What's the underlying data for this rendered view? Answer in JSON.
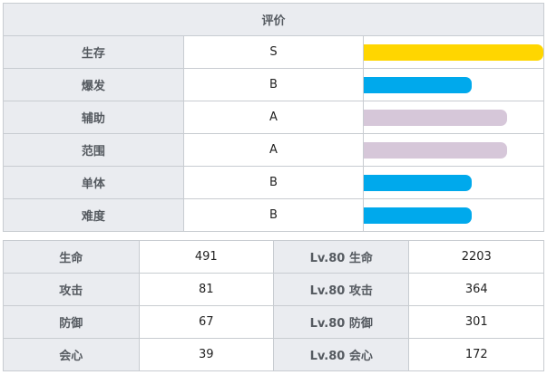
{
  "rating": {
    "title": "评价",
    "rows": [
      {
        "label": "生存",
        "grade": "S",
        "level": 1.0,
        "color": "#ffd600"
      },
      {
        "label": "爆发",
        "grade": "B",
        "level": 0.6,
        "color": "#00a9ec"
      },
      {
        "label": "辅助",
        "grade": "A",
        "level": 0.8,
        "color": "#d6c7d9"
      },
      {
        "label": "范围",
        "grade": "A",
        "level": 0.8,
        "color": "#d6c7d9"
      },
      {
        "label": "单体",
        "grade": "B",
        "level": 0.6,
        "color": "#00a9ec"
      },
      {
        "label": "难度",
        "grade": "B",
        "level": 0.6,
        "color": "#00a9ec"
      }
    ]
  },
  "stats": {
    "rows": [
      {
        "label": "生命",
        "value": "491",
        "lv_label": "Lv.80 生命",
        "lv_value": "2203"
      },
      {
        "label": "攻击",
        "value": "81",
        "lv_label": "Lv.80 攻击",
        "lv_value": "364"
      },
      {
        "label": "防御",
        "value": "67",
        "lv_label": "Lv.80 防御",
        "lv_value": "301"
      },
      {
        "label": "会心",
        "value": "39",
        "lv_label": "Lv.80 会心",
        "lv_value": "172"
      }
    ]
  }
}
